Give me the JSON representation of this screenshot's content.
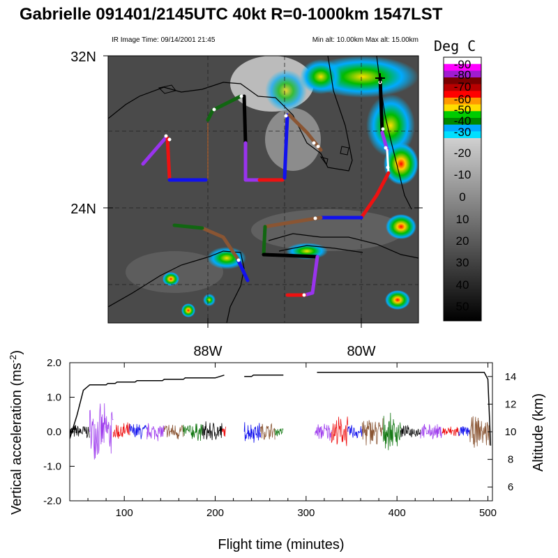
{
  "title": "Gabrielle 091401/2145UTC 40kt  R=0-1000km 1547LST",
  "ir_image_time": "IR Image Time: 09/14/2001 21:45",
  "alt_range": "Min alt: 10.00km  Max alt: 15.00km",
  "colorbar": {
    "title": "Deg  C",
    "labels": [
      "-90",
      "-80",
      "-70",
      "-60",
      "-50",
      "-40",
      "-30",
      "-20",
      "-10",
      "0",
      "10",
      "20",
      "30",
      "40",
      "50"
    ],
    "color_steps": [
      "#ffffff",
      "#ff00ff",
      "#a01cd0",
      "#7a0000",
      "#b80000",
      "#ff0000",
      "#ff9900",
      "#ffdd00",
      "#00cc00",
      "#008800",
      "#00aaff",
      "#00e0ff"
    ]
  },
  "map": {
    "lat_labels": [
      "32N",
      "24N"
    ],
    "lon_labels": [
      "88W",
      "80W"
    ]
  },
  "chart_data": [
    {
      "type": "line",
      "title": "",
      "xlabel": "Flight time (minutes)",
      "ylabel": "Vertical acceleration (ms-2)",
      "ylabel_right": "Altitude (km)",
      "xlim": [
        40,
        505
      ],
      "ylim": [
        -2.0,
        2.0
      ],
      "ylim_right": [
        5,
        15
      ],
      "x_ticks": [
        100,
        200,
        300,
        400,
        500
      ],
      "y_ticks": [
        "2.0",
        "1.0",
        "0.0",
        "-1.0",
        "-2.0"
      ],
      "y_ticks_right": [
        "14",
        "12",
        "10",
        "8",
        "6"
      ],
      "series": [
        {
          "role": "altitude",
          "x": [
            40,
            48,
            55,
            62,
            80,
            82,
            90,
            92,
            112,
            114,
            142,
            144,
            165,
            167,
            200,
            205,
            210,
            232,
            240,
            242,
            275,
            312,
            496,
            500,
            503
          ],
          "y": [
            9.5,
            11.2,
            13.0,
            13.4,
            13.4,
            13.5,
            13.5,
            13.6,
            13.6,
            13.7,
            13.7,
            13.8,
            13.8,
            13.9,
            13.9,
            14.0,
            14.1,
            14.0,
            14.0,
            14.1,
            14.1,
            14.3,
            14.3,
            13.8,
            9.0
          ]
        }
      ],
      "segments": [
        {
          "color": "black",
          "x": [
            40,
            62
          ],
          "amp": 0.25
        },
        {
          "color": "purple",
          "x": [
            62,
            88
          ],
          "amp": 0.85
        },
        {
          "color": "red",
          "x": [
            88,
            106
          ],
          "amp": 0.3
        },
        {
          "color": "blue",
          "x": [
            106,
            125
          ],
          "amp": 0.3
        },
        {
          "color": "purple",
          "x": [
            125,
            144
          ],
          "amp": 0.3
        },
        {
          "color": "brown",
          "x": [
            144,
            165
          ],
          "amp": 0.3
        },
        {
          "color": "green",
          "x": [
            165,
            186
          ],
          "amp": 0.3
        },
        {
          "color": "black",
          "x": [
            186,
            208
          ],
          "amp": 0.35
        },
        {
          "color": "red",
          "x": [
            208,
            212
          ],
          "amp": 0.2
        },
        {
          "color": "blue",
          "x": [
            232,
            250
          ],
          "amp": 0.35
        },
        {
          "color": "brown",
          "x": [
            250,
            266
          ],
          "amp": 0.3
        },
        {
          "color": "green",
          "x": [
            266,
            275
          ],
          "amp": 0.15
        },
        {
          "color": "purple",
          "x": [
            310,
            328
          ],
          "amp": 0.3
        },
        {
          "color": "red",
          "x": [
            328,
            346
          ],
          "amp": 0.5
        },
        {
          "color": "blue",
          "x": [
            346,
            362
          ],
          "amp": 0.25
        },
        {
          "color": "brown",
          "x": [
            362,
            385
          ],
          "amp": 0.5
        },
        {
          "color": "green",
          "x": [
            385,
            404
          ],
          "amp": 0.55
        },
        {
          "color": "black",
          "x": [
            404,
            426
          ],
          "amp": 0.2
        },
        {
          "color": "purple",
          "x": [
            426,
            450
          ],
          "amp": 0.25
        },
        {
          "color": "red",
          "x": [
            450,
            468
          ],
          "amp": 0.2
        },
        {
          "color": "blue",
          "x": [
            468,
            480
          ],
          "amp": 0.2
        },
        {
          "color": "brown",
          "x": [
            480,
            502
          ],
          "amp": 0.5
        }
      ]
    }
  ]
}
